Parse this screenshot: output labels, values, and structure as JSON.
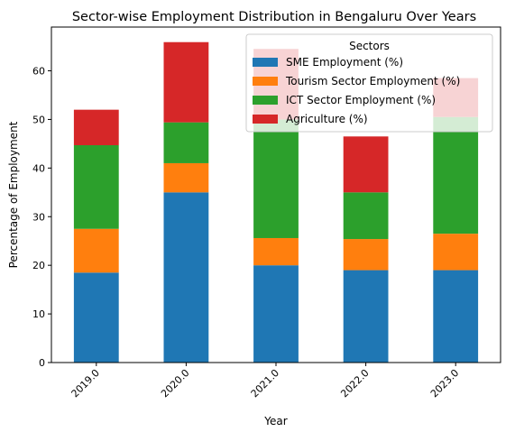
{
  "chart_data": {
    "type": "bar",
    "stacked": true,
    "title": "Sector-wise Employment Distribution in Bengaluru Over Years",
    "xlabel": "Year",
    "ylabel": "Percentage of Employment",
    "categories": [
      "2019.0",
      "2020.0",
      "2021.0",
      "2022.0",
      "2023.0"
    ],
    "ylim": [
      0,
      69
    ],
    "yticks": [
      0,
      10,
      20,
      30,
      40,
      50,
      60
    ],
    "grid": false,
    "legend": {
      "title": "Sectors",
      "placement": "top-right"
    },
    "series": [
      {
        "name": "SME Employment (%)",
        "color": "#1f77b4",
        "values": [
          18.5,
          35,
          20,
          19,
          19
        ]
      },
      {
        "name": "Tourism Sector Employment (%)",
        "color": "#ff7f0e",
        "values": [
          9,
          6,
          5.6,
          6.4,
          7.5
        ]
      },
      {
        "name": "ICT Sector Employment (%)",
        "color": "#2ca02c",
        "values": [
          17.2,
          8.4,
          24.4,
          9.6,
          24
        ]
      },
      {
        "name": "Agriculture (%)",
        "color": "#d62728",
        "values": [
          7.3,
          16.5,
          14.5,
          11.5,
          8
        ]
      }
    ]
  }
}
